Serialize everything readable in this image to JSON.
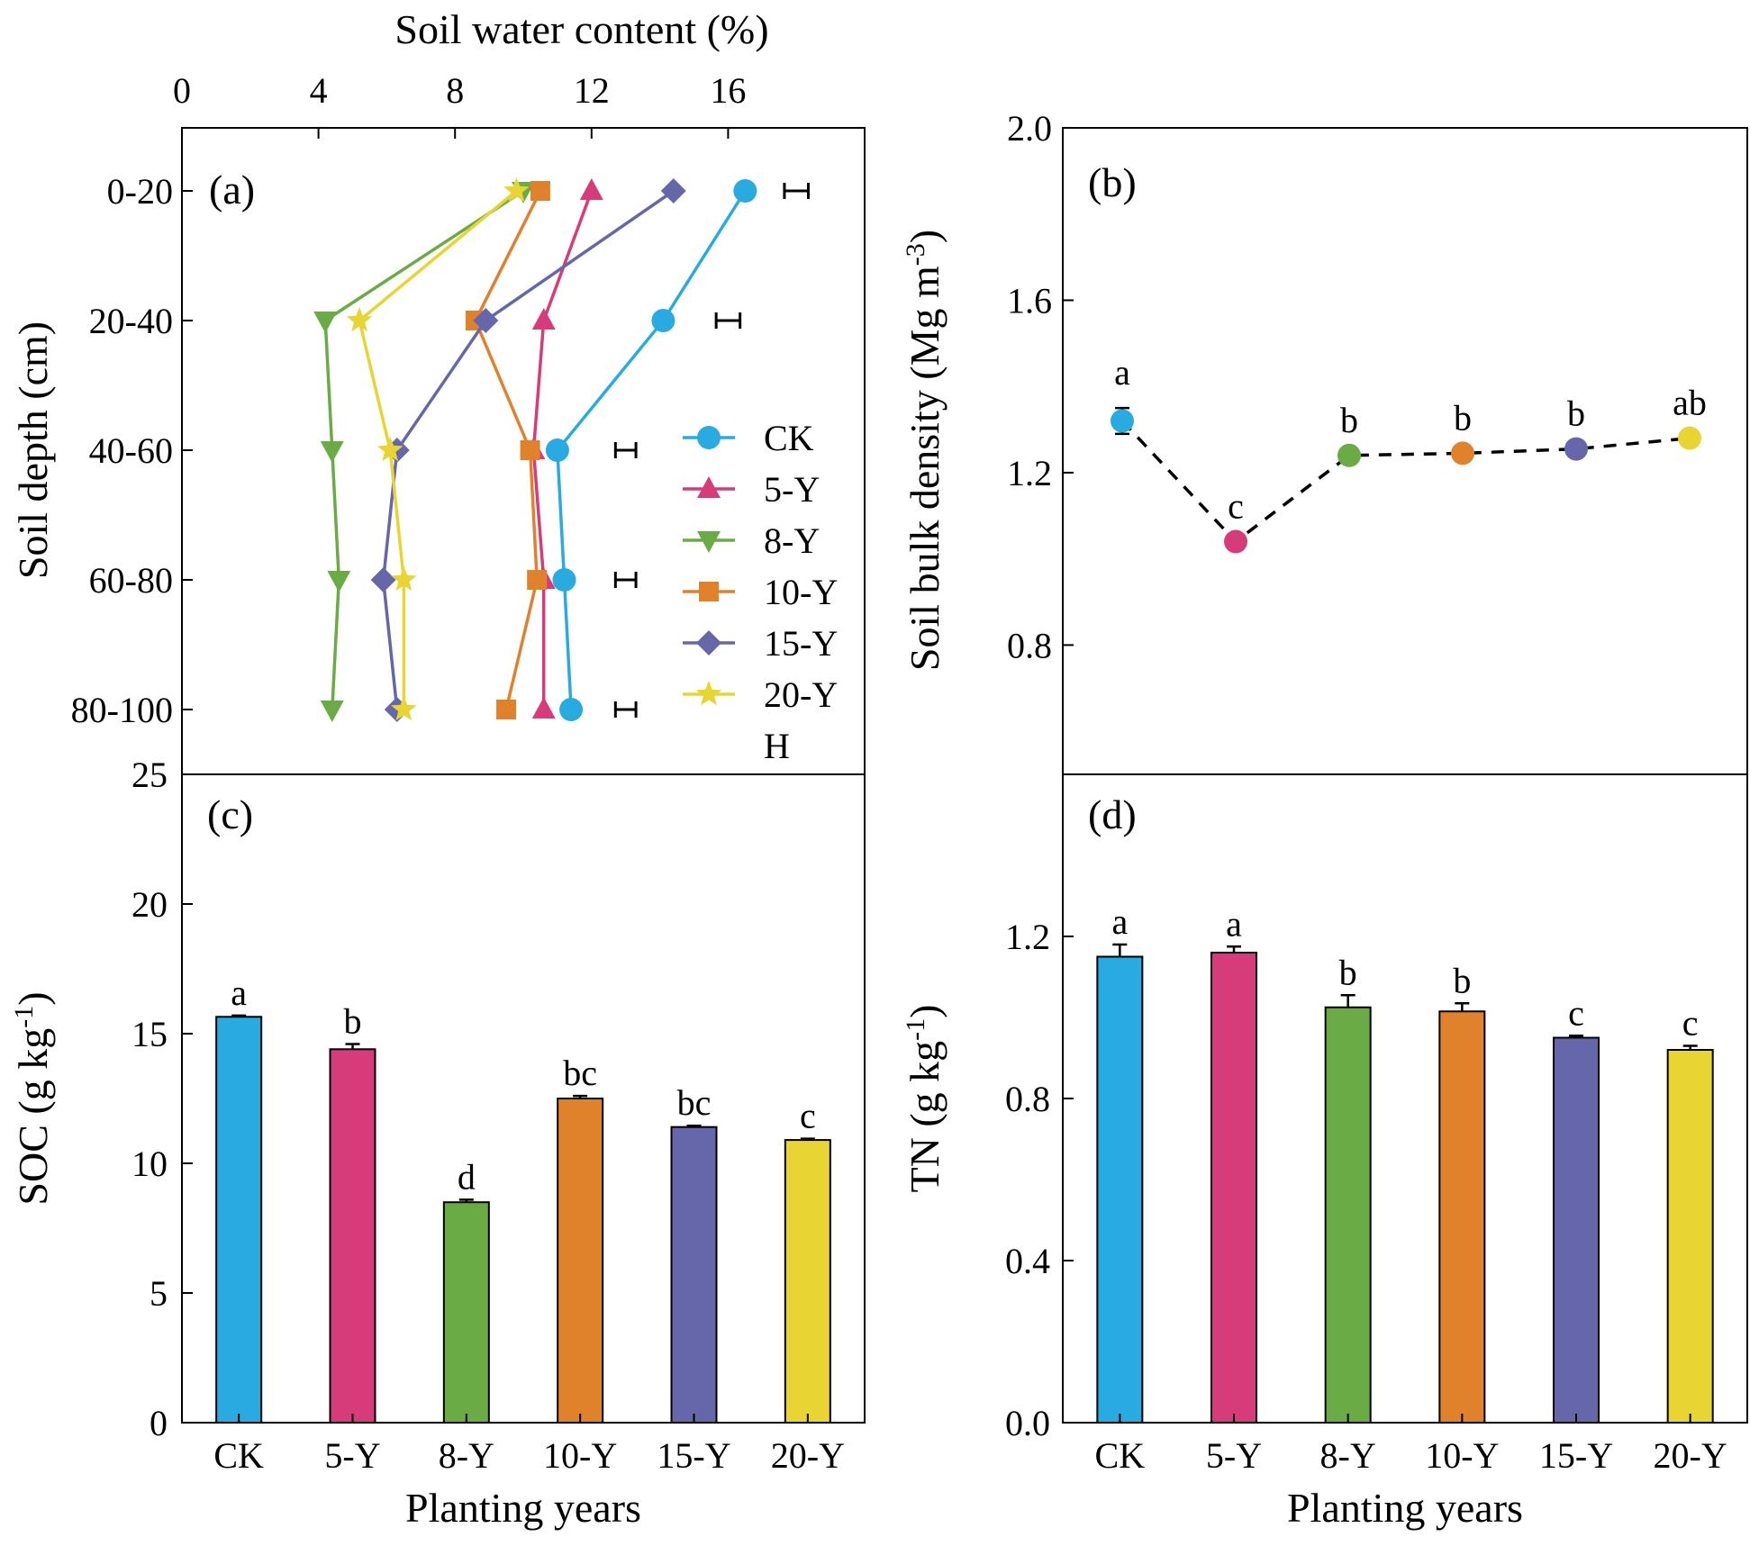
{
  "colors": {
    "CK": "#29abe2",
    "5-Y": "#d63c7a",
    "8-Y": "#6aab45",
    "10-Y": "#e0812b",
    "15-Y": "#6667ab",
    "20-Y": "#e8d534"
  },
  "chart_data": [
    {
      "panel": "(a)",
      "type": "line",
      "title": "",
      "xlabel": "Soil water content (%)",
      "ylabel": "Soil depth (cm)",
      "xlim": [
        0,
        20
      ],
      "xticks": [
        "0",
        "4",
        "8",
        "12",
        "16"
      ],
      "y_categories": [
        "0-20",
        "20-40",
        "40-60",
        "60-80",
        "80-100"
      ],
      "series": [
        {
          "name": "CK",
          "marker": "circle",
          "values": [
            16.5,
            14.1,
            11.0,
            11.2,
            11.4
          ]
        },
        {
          "name": "5-Y",
          "marker": "triangle-up",
          "values": [
            12.0,
            10.6,
            10.3,
            10.6,
            10.6
          ]
        },
        {
          "name": "8-Y",
          "marker": "triangle-down",
          "values": [
            10.0,
            4.2,
            4.4,
            4.6,
            4.4
          ]
        },
        {
          "name": "10-Y",
          "marker": "square",
          "values": [
            10.5,
            8.6,
            10.2,
            10.4,
            9.5
          ]
        },
        {
          "name": "15-Y",
          "marker": "diamond",
          "values": [
            14.4,
            8.9,
            6.3,
            5.9,
            6.3
          ]
        },
        {
          "name": "20-Y",
          "marker": "star",
          "values": [
            9.8,
            5.2,
            6.1,
            6.5,
            6.5
          ]
        }
      ],
      "error_bars": [
        {
          "depth": "0-20",
          "center": 18.0,
          "halfwidth": 0.35
        },
        {
          "depth": "20-40",
          "center": 16.0,
          "halfwidth": 0.35
        },
        {
          "depth": "40-60",
          "center": 13.0,
          "halfwidth": 0.3
        },
        {
          "depth": "60-80",
          "center": 13.0,
          "halfwidth": 0.3
        },
        {
          "depth": "80-100",
          "center": 13.0,
          "halfwidth": 0.3
        }
      ],
      "legend_extra": "H",
      "legend_position": "right"
    },
    {
      "panel": "(b)",
      "type": "scatter",
      "title": "",
      "xlabel": "",
      "ylabel": "Soil bulk density (Mg m",
      "ylabel_sup": "-3",
      "ylabel_tail": ")",
      "ylim": [
        0.5,
        2.0
      ],
      "yticks": [
        "0.8",
        "1.2",
        "1.6",
        "2.0"
      ],
      "categories": [
        "CK",
        "5-Y",
        "8-Y",
        "10-Y",
        "15-Y",
        "20-Y"
      ],
      "values": [
        1.32,
        1.04,
        1.24,
        1.245,
        1.255,
        1.28
      ],
      "errors": [
        0.03,
        0.0,
        0.0,
        0.0,
        0.0,
        0.0
      ],
      "letters": [
        "a",
        "c",
        "b",
        "b",
        "b",
        "ab"
      ],
      "line_style": "dashed"
    },
    {
      "panel": "(c)",
      "type": "bar",
      "title": "",
      "xlabel": "Planting years",
      "ylabel": "SOC (g kg",
      "ylabel_sup": "-1",
      "ylabel_tail": ")",
      "ylim": [
        0,
        25
      ],
      "yticks": [
        "0",
        "5",
        "10",
        "15",
        "20",
        "25"
      ],
      "categories": [
        "CK",
        "5-Y",
        "8-Y",
        "10-Y",
        "15-Y",
        "20-Y"
      ],
      "values": [
        15.65,
        14.4,
        8.5,
        12.5,
        11.4,
        10.9
      ],
      "errors": [
        0.05,
        0.2,
        0.1,
        0.1,
        0.05,
        0.05
      ],
      "letters": [
        "a",
        "b",
        "d",
        "bc",
        "bc",
        "c"
      ]
    },
    {
      "panel": "(d)",
      "type": "bar",
      "title": "",
      "xlabel": "Planting years",
      "ylabel": "TN (g kg",
      "ylabel_sup": "-1",
      "ylabel_tail": ")",
      "ylim": [
        0,
        1.6
      ],
      "yticks": [
        "0.0",
        "0.4",
        "0.8",
        "1.2"
      ],
      "categories": [
        "CK",
        "5-Y",
        "8-Y",
        "10-Y",
        "15-Y",
        "20-Y"
      ],
      "values": [
        1.15,
        1.16,
        1.025,
        1.015,
        0.95,
        0.92
      ],
      "errors": [
        0.03,
        0.015,
        0.03,
        0.02,
        0.005,
        0.01
      ],
      "letters": [
        "a",
        "a",
        "b",
        "b",
        "c",
        "c"
      ]
    }
  ]
}
